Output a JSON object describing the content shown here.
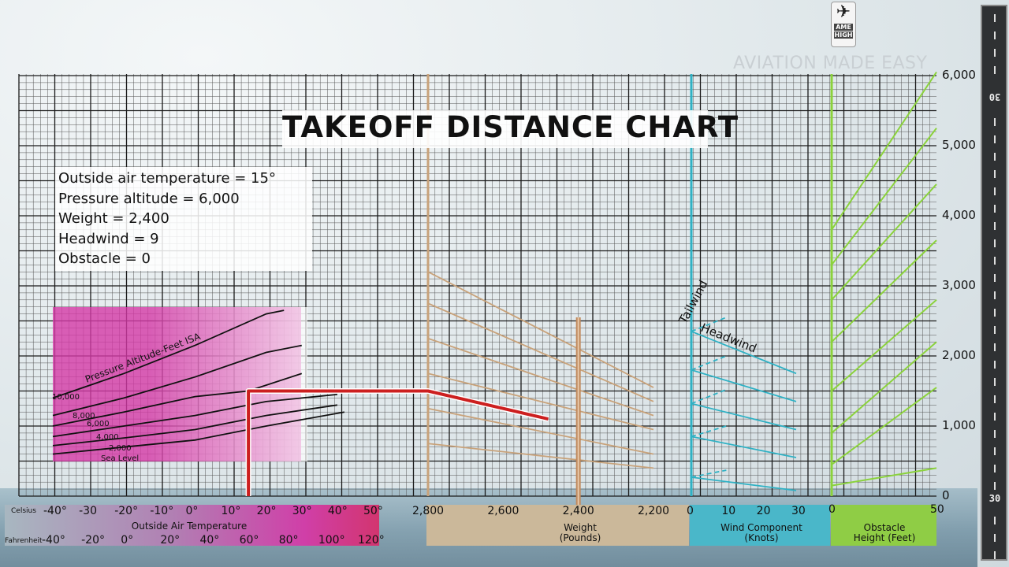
{
  "brand": {
    "logo_name": "plane-logo",
    "logo_text": [
      "AME",
      "HIGH"
    ],
    "tagline": "AVIATION MADE EASY"
  },
  "given": {
    "oat": "Outside air temperature = 15°",
    "pa": "Pressure altitude = 6,000",
    "weight": "Weight = 2,400",
    "headwind": "Headwind = 9",
    "obstacle": "Obstacle = 0"
  },
  "runway": {
    "top_number": "30",
    "bottom_number": "30"
  },
  "colors": {
    "temperature_section": "#d43aa6",
    "weight_section": "#c8a27a",
    "wind_section": "#2fb1c4",
    "obstacle_section": "#8bd23c",
    "solution_path": "#cc1f1f",
    "weight_marker": "#c08a5e"
  },
  "chart_data": {
    "type": "line",
    "title": "TAKEOFF DISTANCE CHART",
    "y_axis": {
      "ticks": [
        "0",
        "1,000",
        "2,000",
        "3,000",
        "4,000",
        "5,000",
        "6,000"
      ],
      "values": [
        0,
        1000,
        2000,
        3000,
        4000,
        5000,
        6000
      ],
      "range": [
        0,
        6000
      ],
      "position": "right"
    },
    "grid": true,
    "sections": {
      "temperature": {
        "xlabel": "Outside Air Temperature",
        "celsius_label": "Celsius",
        "fahrenheit_label": "Fahrenheit",
        "celsius_ticks": [
          "-40°",
          "-30",
          "-20°",
          "-10°",
          "0°",
          "10°",
          "20°",
          "30°",
          "40°",
          "50°"
        ],
        "celsius_values": [
          -40,
          -30,
          -20,
          -10,
          0,
          10,
          20,
          30,
          40,
          50
        ],
        "fahrenheit_ticks": [
          "-40°",
          "-20°",
          "0°",
          "20°",
          "40°",
          "60°",
          "80°",
          "100°",
          "120°"
        ],
        "fahrenheit_values": [
          -40,
          -20,
          0,
          20,
          40,
          60,
          80,
          100,
          120
        ],
        "curve_group_label": "Pressure Altitude-Feet ISA",
        "curves": [
          {
            "name": "10,000",
            "points": [
              [
                -40,
                1400
              ],
              [
                -20,
                1750
              ],
              [
                0,
                2150
              ],
              [
                20,
                2600
              ],
              [
                25,
                2650
              ]
            ]
          },
          {
            "name": "8,000",
            "points": [
              [
                -40,
                1150
              ],
              [
                -20,
                1400
              ],
              [
                0,
                1700
              ],
              [
                20,
                2050
              ],
              [
                30,
                2150
              ]
            ]
          },
          {
            "name": "6,000",
            "points": [
              [
                -40,
                1000
              ],
              [
                -20,
                1200
              ],
              [
                0,
                1420
              ],
              [
                15,
                1500
              ],
              [
                30,
                1750
              ]
            ]
          },
          {
            "name": "4,000",
            "points": [
              [
                -40,
                850
              ],
              [
                -20,
                1000
              ],
              [
                0,
                1150
              ],
              [
                20,
                1350
              ],
              [
                40,
                1450
              ]
            ]
          },
          {
            "name": "2,000",
            "points": [
              [
                -40,
                720
              ],
              [
                -20,
                830
              ],
              [
                0,
                950
              ],
              [
                20,
                1150
              ],
              [
                40,
                1300
              ]
            ]
          },
          {
            "name": "Sea Level",
            "points": [
              [
                -40,
                600
              ],
              [
                -20,
                700
              ],
              [
                0,
                800
              ],
              [
                20,
                1000
              ],
              [
                42,
                1200
              ]
            ]
          }
        ]
      },
      "weight": {
        "xlabel": "Weight",
        "xunit": "(Pounds)",
        "ticks": [
          "2,800",
          "2,600",
          "2,400",
          "2,200"
        ],
        "values": [
          2800,
          2600,
          2400,
          2200
        ],
        "guide_lines": [
          {
            "start": 3200,
            "end": 1550
          },
          {
            "start": 2750,
            "end": 1350
          },
          {
            "start": 2250,
            "end": 1150
          },
          {
            "start": 1750,
            "end": 950
          },
          {
            "start": 1250,
            "end": 600
          },
          {
            "start": 750,
            "end": 400
          }
        ],
        "marker_value": 2400
      },
      "wind": {
        "xlabel": "Wind Component",
        "xunit": "(Knots)",
        "ticks": [
          "0",
          "10",
          "20",
          "30"
        ],
        "values": [
          0,
          10,
          20,
          30
        ],
        "tailwind_label": "Tailwind",
        "headwind_label": "Headwind",
        "headwind_lines": [
          {
            "start": 2350,
            "end": 1750
          },
          {
            "start": 1800,
            "end": 1350
          },
          {
            "start": 1320,
            "end": 950
          },
          {
            "start": 850,
            "end": 550
          },
          {
            "start": 270,
            "end": 80
          }
        ],
        "tailwind_lines": [
          {
            "start": 2350,
            "end": 2550,
            "to_x": 10
          },
          {
            "start": 1800,
            "end": 2000,
            "to_x": 10
          },
          {
            "start": 1320,
            "end": 1520,
            "to_x": 10
          },
          {
            "start": 850,
            "end": 1000,
            "to_x": 10
          },
          {
            "start": 270,
            "end": 370,
            "to_x": 10
          }
        ]
      },
      "obstacle": {
        "xlabel": "Obstacle",
        "xunit": "Height (Feet)",
        "ticks": [
          "0",
          "50"
        ],
        "values": [
          0,
          50
        ],
        "lines": [
          {
            "start": 3800,
            "end": 6050
          },
          {
            "start": 3300,
            "end": 5250
          },
          {
            "start": 2800,
            "end": 4450
          },
          {
            "start": 2200,
            "end": 3650
          },
          {
            "start": 1500,
            "end": 2800
          },
          {
            "start": 900,
            "end": 2200
          },
          {
            "start": 450,
            "end": 1550
          },
          {
            "start": 150,
            "end": 400
          }
        ]
      }
    },
    "solution_path": [
      {
        "section": "temperature",
        "x": 15,
        "y": 0
      },
      {
        "section": "temperature",
        "x": 15,
        "y": 1500
      },
      {
        "section": "weight",
        "x": 2800,
        "y": 1500
      },
      {
        "section": "weight",
        "x": 2480,
        "y": 1100
      }
    ]
  }
}
